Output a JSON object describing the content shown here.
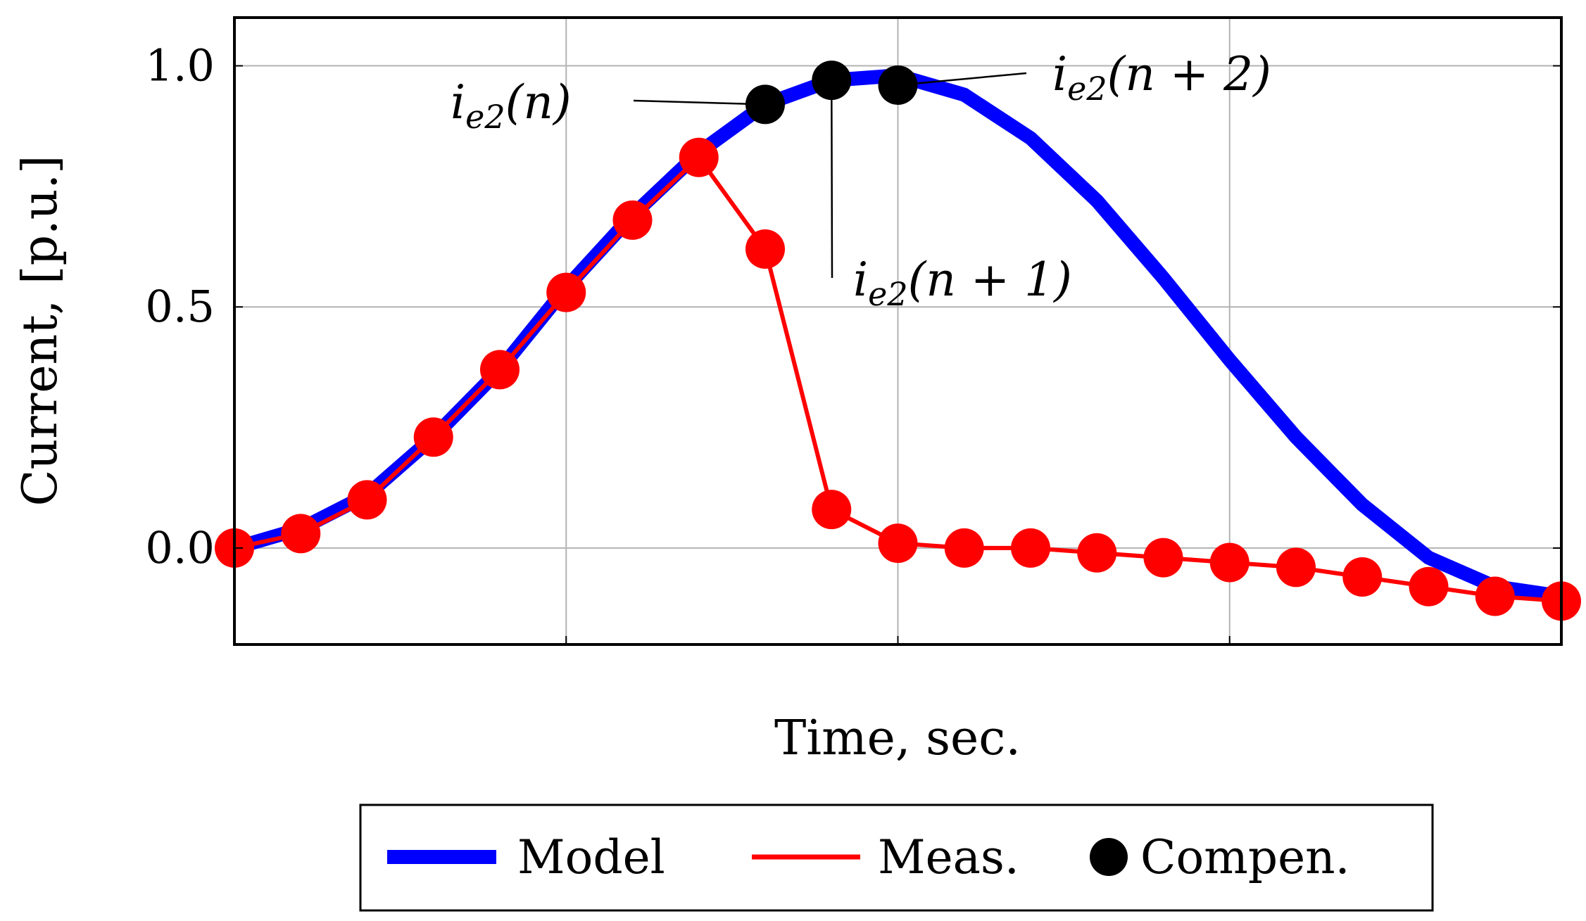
{
  "chart_data": {
    "type": "line",
    "title": "",
    "xlabel": "Time, sec.",
    "ylabel": "Current, [p.u.]",
    "xlim": [
      0,
      20
    ],
    "ylim": [
      -0.2,
      1.1
    ],
    "x_gridlines": [
      5,
      10,
      15
    ],
    "y_ticks": [
      0.0,
      0.5,
      1.0
    ],
    "y_tick_labels": [
      "0.0",
      "0.5",
      "1.0"
    ],
    "grid": true,
    "series": [
      {
        "name": "Model",
        "style": "thick-line",
        "color": "#0000ff",
        "x": [
          0,
          1,
          2,
          3,
          4,
          5,
          6,
          7,
          8,
          9,
          10,
          11,
          12,
          13,
          14,
          15,
          16,
          17,
          18,
          19,
          20
        ],
        "values": [
          0.0,
          0.04,
          0.11,
          0.23,
          0.37,
          0.54,
          0.69,
          0.82,
          0.92,
          0.97,
          0.98,
          0.94,
          0.85,
          0.72,
          0.56,
          0.39,
          0.23,
          0.09,
          -0.02,
          -0.08,
          -0.1
        ]
      },
      {
        "name": "Meas.",
        "style": "line-markers",
        "color": "#ff0000",
        "x": [
          0,
          1,
          2,
          3,
          4,
          5,
          6,
          7,
          8,
          9,
          10,
          11,
          12,
          13,
          14,
          15,
          16,
          17,
          18,
          19,
          20
        ],
        "values": [
          0.0,
          0.03,
          0.1,
          0.23,
          0.37,
          0.53,
          0.68,
          0.81,
          0.62,
          0.08,
          0.01,
          0.0,
          0.0,
          -0.01,
          -0.02,
          -0.03,
          -0.04,
          -0.06,
          -0.08,
          -0.1,
          -0.11
        ]
      },
      {
        "name": "Compen.",
        "style": "markers",
        "color": "#000000",
        "x": [
          8,
          9,
          10
        ],
        "values": [
          0.92,
          0.97,
          0.96
        ]
      }
    ],
    "annotations": [
      {
        "label": "i_e2(n)",
        "base": "i",
        "sub": "e2",
        "arg": "(n)",
        "point_x": 8,
        "point_y": 0.92
      },
      {
        "label": "i_e2(n+1)",
        "base": "i",
        "sub": "e2",
        "arg": "(n + 1)",
        "point_x": 9,
        "point_y": 0.97
      },
      {
        "label": "i_e2(n+2)",
        "base": "i",
        "sub": "e2",
        "arg": "(n + 2)",
        "point_x": 10,
        "point_y": 0.96
      }
    ],
    "legend": {
      "placement": "bottom-center",
      "entries": [
        "Model",
        "Meas.",
        "Compen."
      ]
    }
  }
}
